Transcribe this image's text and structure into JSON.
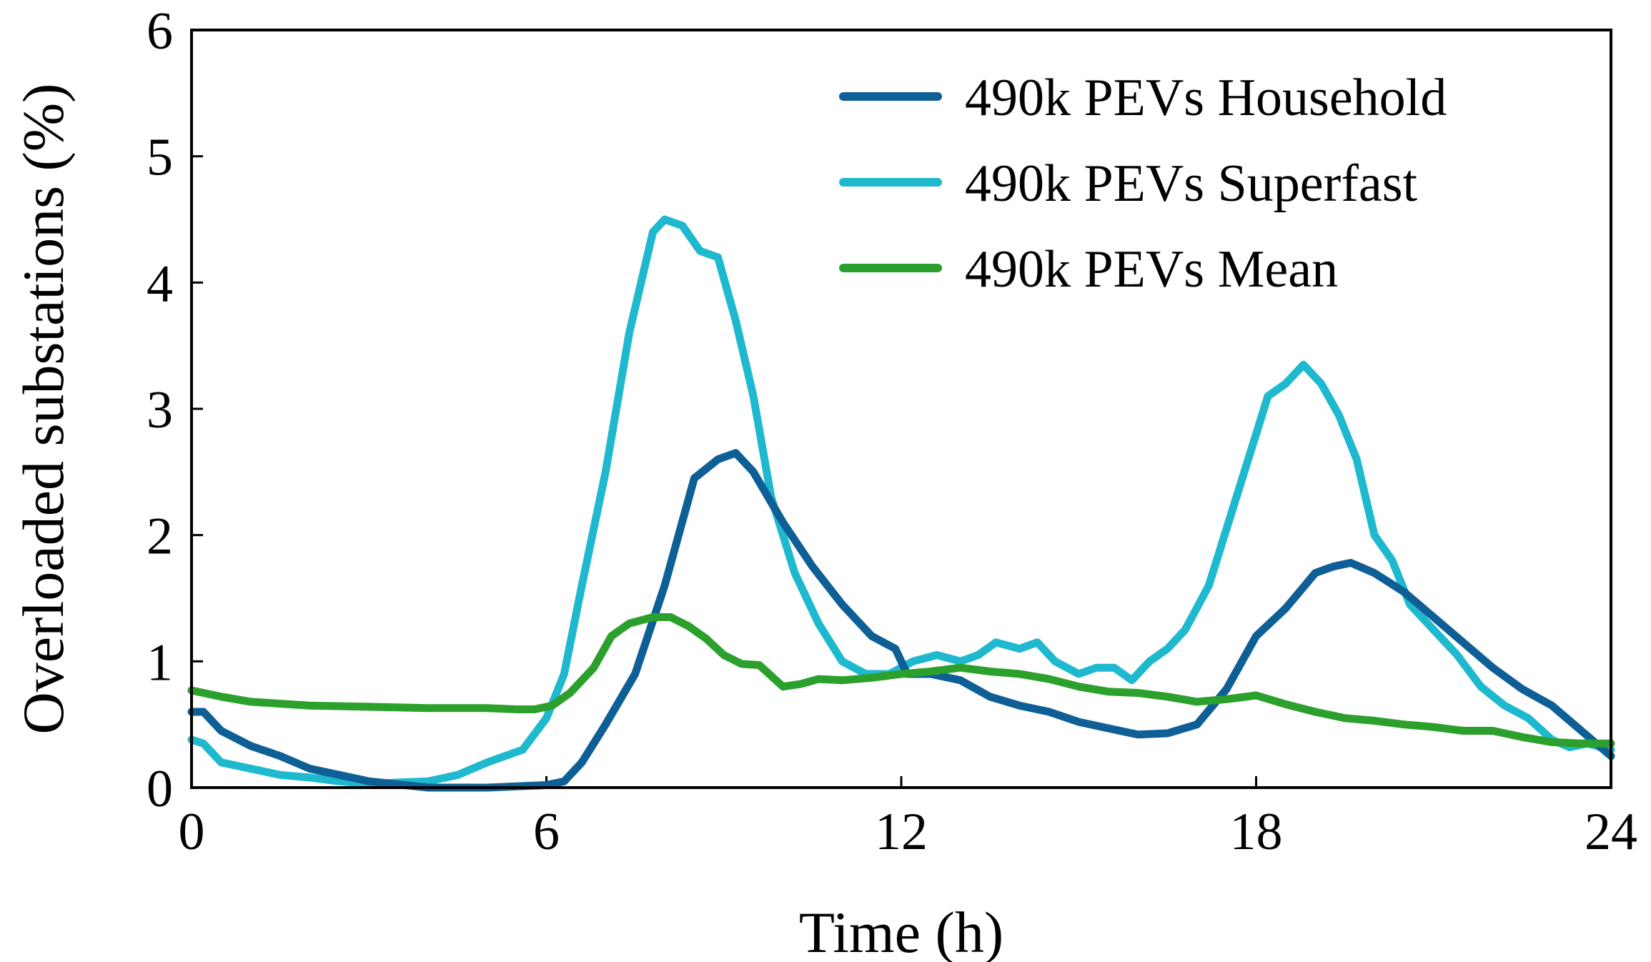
{
  "chart_data": {
    "type": "line",
    "title": "",
    "xlabel": "Time (h)",
    "ylabel": "Overloaded substations (%)",
    "xlim": [
      0,
      24
    ],
    "ylim": [
      0,
      6
    ],
    "xticks": [
      0,
      6,
      12,
      18,
      24
    ],
    "yticks": [
      0,
      1,
      2,
      3,
      4,
      5,
      6
    ],
    "grid": false,
    "legend_position": "top-right",
    "series": [
      {
        "name": "490k PEVs Household",
        "color": "#0E5F96",
        "x": [
          0,
          0.2,
          0.5,
          1,
          1.5,
          2,
          3,
          4,
          5,
          5.5,
          6,
          6.3,
          6.6,
          7,
          7.5,
          8,
          8.5,
          8.9,
          9.2,
          9.5,
          10,
          10.5,
          11,
          11.5,
          11.9,
          12.1,
          12.5,
          13,
          13.5,
          14,
          14.5,
          15,
          15.5,
          16,
          16.5,
          17,
          17.5,
          18,
          18.5,
          19,
          19.3,
          19.6,
          20,
          20.5,
          21,
          21.5,
          22,
          22.5,
          23,
          23.5,
          24
        ],
        "values": [
          0.6,
          0.6,
          0.45,
          0.33,
          0.25,
          0.15,
          0.05,
          0.0,
          0.0,
          0.01,
          0.02,
          0.05,
          0.2,
          0.5,
          0.9,
          1.6,
          2.45,
          2.6,
          2.65,
          2.5,
          2.1,
          1.75,
          1.45,
          1.2,
          1.1,
          0.9,
          0.9,
          0.85,
          0.72,
          0.65,
          0.6,
          0.52,
          0.47,
          0.42,
          0.43,
          0.5,
          0.78,
          1.2,
          1.42,
          1.7,
          1.75,
          1.78,
          1.7,
          1.55,
          1.35,
          1.15,
          0.95,
          0.78,
          0.65,
          0.45,
          0.25
        ]
      },
      {
        "name": "490k PEVs Superfast",
        "color": "#1EB9CF",
        "x": [
          0,
          0.2,
          0.5,
          1,
          1.5,
          2,
          2.5,
          3,
          3.5,
          4,
          4.5,
          5,
          5.3,
          5.6,
          6,
          6.3,
          6.6,
          7,
          7.4,
          7.8,
          8,
          8.3,
          8.6,
          8.9,
          9.2,
          9.5,
          9.8,
          10.2,
          10.6,
          11,
          11.4,
          11.8,
          12.2,
          12.6,
          13,
          13.3,
          13.6,
          14,
          14.3,
          14.6,
          15,
          15.3,
          15.6,
          15.9,
          16.2,
          16.5,
          16.8,
          17.2,
          17.6,
          18,
          18.2,
          18.5,
          18.8,
          19.1,
          19.4,
          19.7,
          20,
          20.3,
          20.6,
          21,
          21.4,
          21.8,
          22.2,
          22.6,
          23,
          23.3,
          23.6,
          24
        ],
        "values": [
          0.38,
          0.35,
          0.2,
          0.15,
          0.1,
          0.08,
          0.05,
          0.03,
          0.04,
          0.05,
          0.1,
          0.2,
          0.25,
          0.3,
          0.55,
          0.9,
          1.6,
          2.5,
          3.6,
          4.4,
          4.5,
          4.45,
          4.25,
          4.2,
          3.7,
          3.1,
          2.3,
          1.7,
          1.3,
          1.0,
          0.9,
          0.9,
          1.0,
          1.05,
          1.0,
          1.05,
          1.15,
          1.1,
          1.15,
          1.0,
          0.9,
          0.95,
          0.95,
          0.85,
          1.0,
          1.1,
          1.25,
          1.6,
          2.2,
          2.8,
          3.1,
          3.2,
          3.35,
          3.2,
          2.95,
          2.6,
          2.0,
          1.8,
          1.45,
          1.25,
          1.05,
          0.8,
          0.65,
          0.55,
          0.38,
          0.32,
          0.35,
          0.3
        ]
      },
      {
        "name": "490k PEVs Mean",
        "color": "#2CA02C",
        "x": [
          0,
          0.5,
          1,
          2,
          3,
          4,
          5,
          5.5,
          5.8,
          6.1,
          6.4,
          6.8,
          7.1,
          7.4,
          7.8,
          8.1,
          8.4,
          8.7,
          9,
          9.3,
          9.6,
          10,
          10.3,
          10.6,
          11,
          11.5,
          12,
          12.5,
          13,
          13.5,
          14,
          14.5,
          15,
          15.5,
          16,
          16.5,
          17,
          17.5,
          18,
          18.5,
          19,
          19.5,
          20,
          20.5,
          21,
          21.5,
          22,
          22.5,
          23,
          23.5,
          24
        ],
        "values": [
          0.77,
          0.72,
          0.68,
          0.65,
          0.64,
          0.63,
          0.63,
          0.62,
          0.62,
          0.65,
          0.75,
          0.95,
          1.2,
          1.3,
          1.35,
          1.35,
          1.28,
          1.18,
          1.05,
          0.98,
          0.97,
          0.8,
          0.82,
          0.86,
          0.85,
          0.87,
          0.9,
          0.92,
          0.95,
          0.92,
          0.9,
          0.86,
          0.8,
          0.76,
          0.75,
          0.72,
          0.68,
          0.7,
          0.73,
          0.66,
          0.6,
          0.55,
          0.53,
          0.5,
          0.48,
          0.45,
          0.45,
          0.4,
          0.36,
          0.35,
          0.35
        ]
      }
    ]
  }
}
